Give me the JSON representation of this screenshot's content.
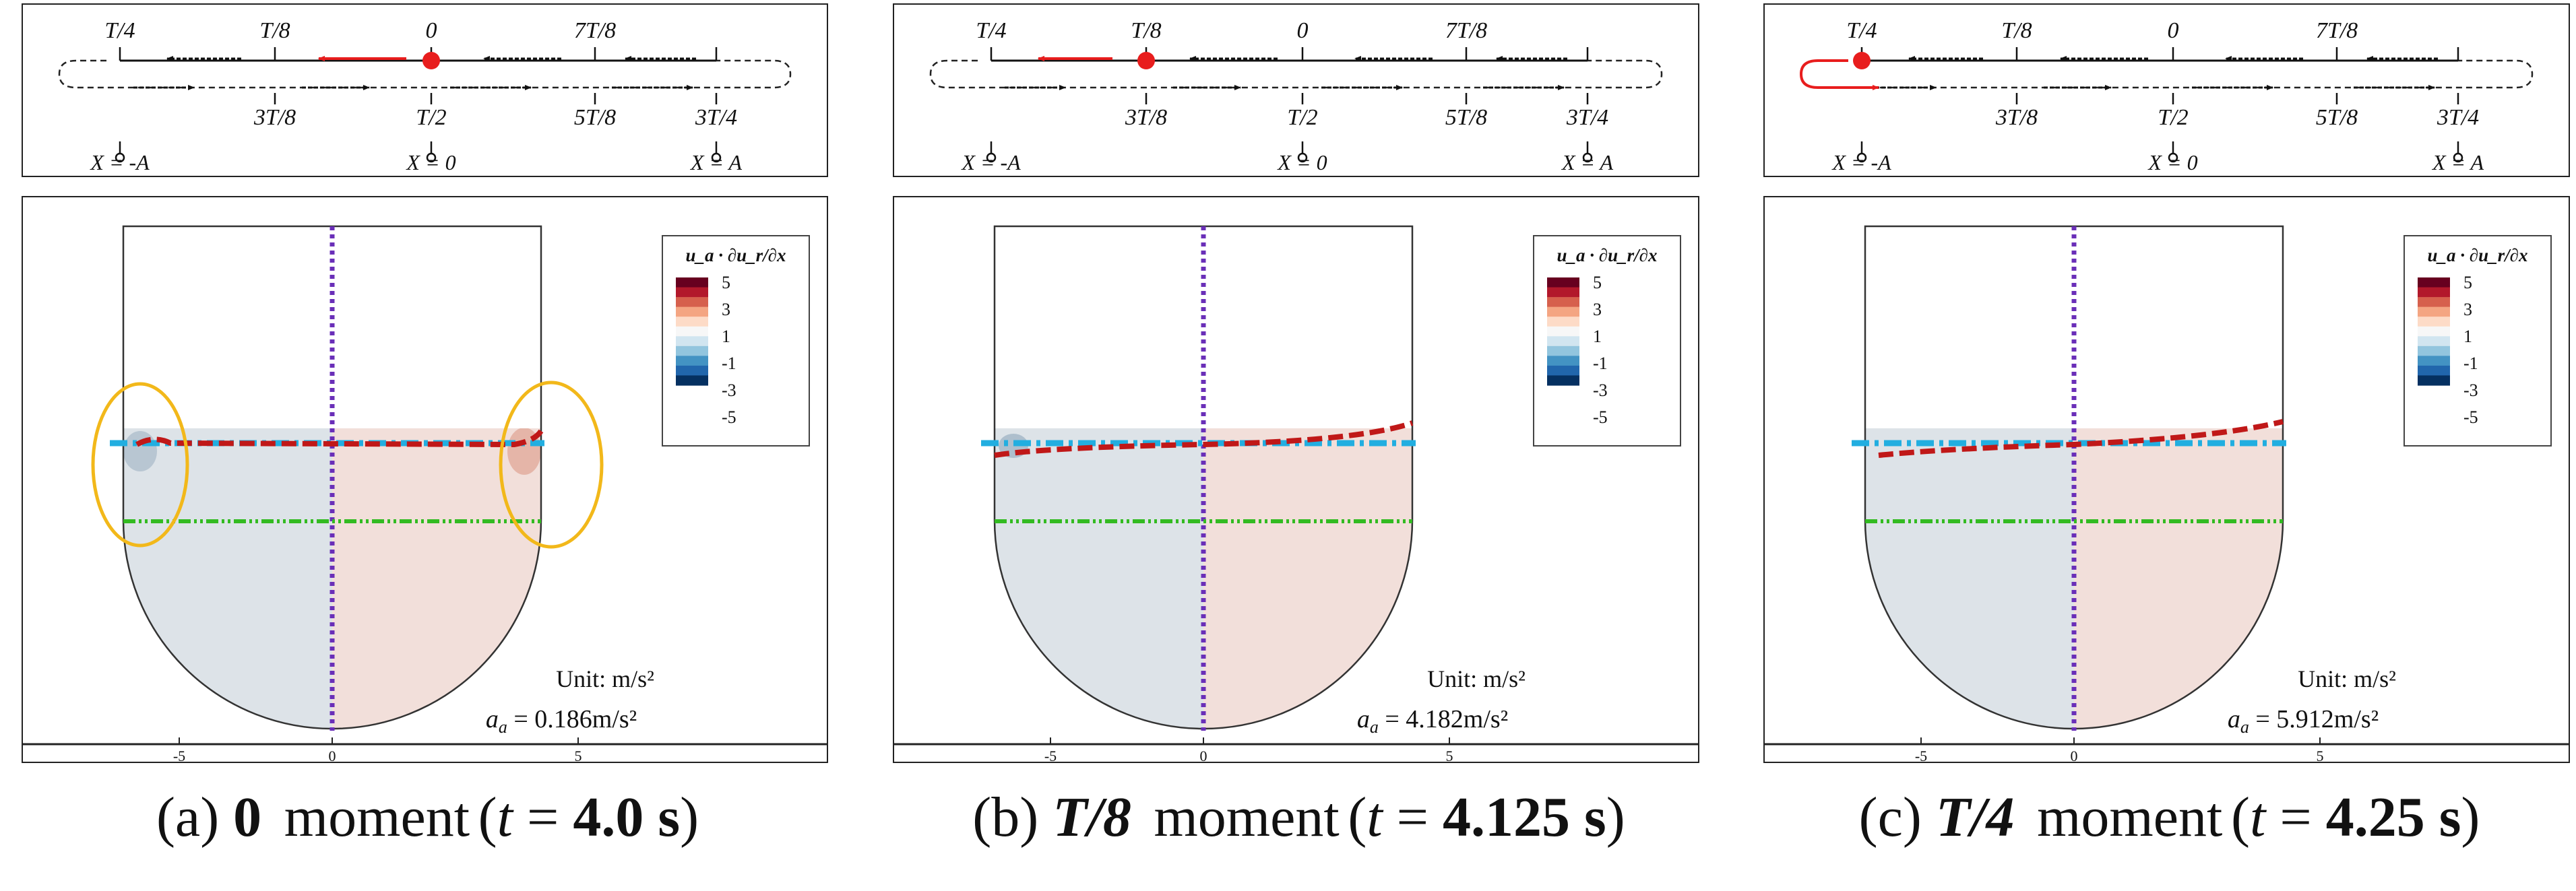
{
  "schematic": {
    "top_labels": [
      "T/4",
      "T/8",
      "0",
      "7T/8"
    ],
    "bottom_labels": [
      "3T/8",
      "T/2",
      "5T/8",
      "3T/4"
    ],
    "positions": [
      "X = -A",
      "X = 0",
      "X = A"
    ]
  },
  "legend": {
    "title": "u_a · ∂u_r/∂x",
    "levels": [
      "5",
      "3",
      "1",
      "-1",
      "-3",
      "-5"
    ],
    "colors": [
      "#67001f",
      "#b2182b",
      "#d6604d",
      "#f4a582",
      "#fddbc7",
      "#f7f7f7",
      "#d1e5f0",
      "#92c5de",
      "#4393c3",
      "#2166ac",
      "#053061"
    ]
  },
  "axis": {
    "ticks": [
      "-5",
      "0",
      "5"
    ]
  },
  "unit_label": "Unit: m/s²",
  "accel_var": "a",
  "accel_sub": "a",
  "colors": {
    "free_surface_red": "#c01818",
    "initial_level_cyan": "#22aee0",
    "mid_line_green": "#33bb22",
    "centerline_purple": "#6a2fb8",
    "highlight_yellow": "#f2b81a",
    "motion_red": "#e81d1d"
  },
  "panels": [
    {
      "id": "a",
      "caption_label": "(a)",
      "moment_symbol": "0",
      "moment_word": "moment",
      "time_value": "4.0 s",
      "accel_value": "0.186m/s²",
      "red_dot_label": "0"
    },
    {
      "id": "b",
      "caption_label": "(b)",
      "moment_symbol": "T/8",
      "moment_word": "moment",
      "time_value": "4.125 s",
      "accel_value": "4.182m/s²",
      "red_dot_label": "T/8"
    },
    {
      "id": "c",
      "caption_label": "(c)",
      "moment_symbol": "T/4",
      "moment_word": "moment",
      "time_value": "4.25 s",
      "accel_value": "5.912m/s²",
      "red_dot_label": "T/4"
    }
  ]
}
